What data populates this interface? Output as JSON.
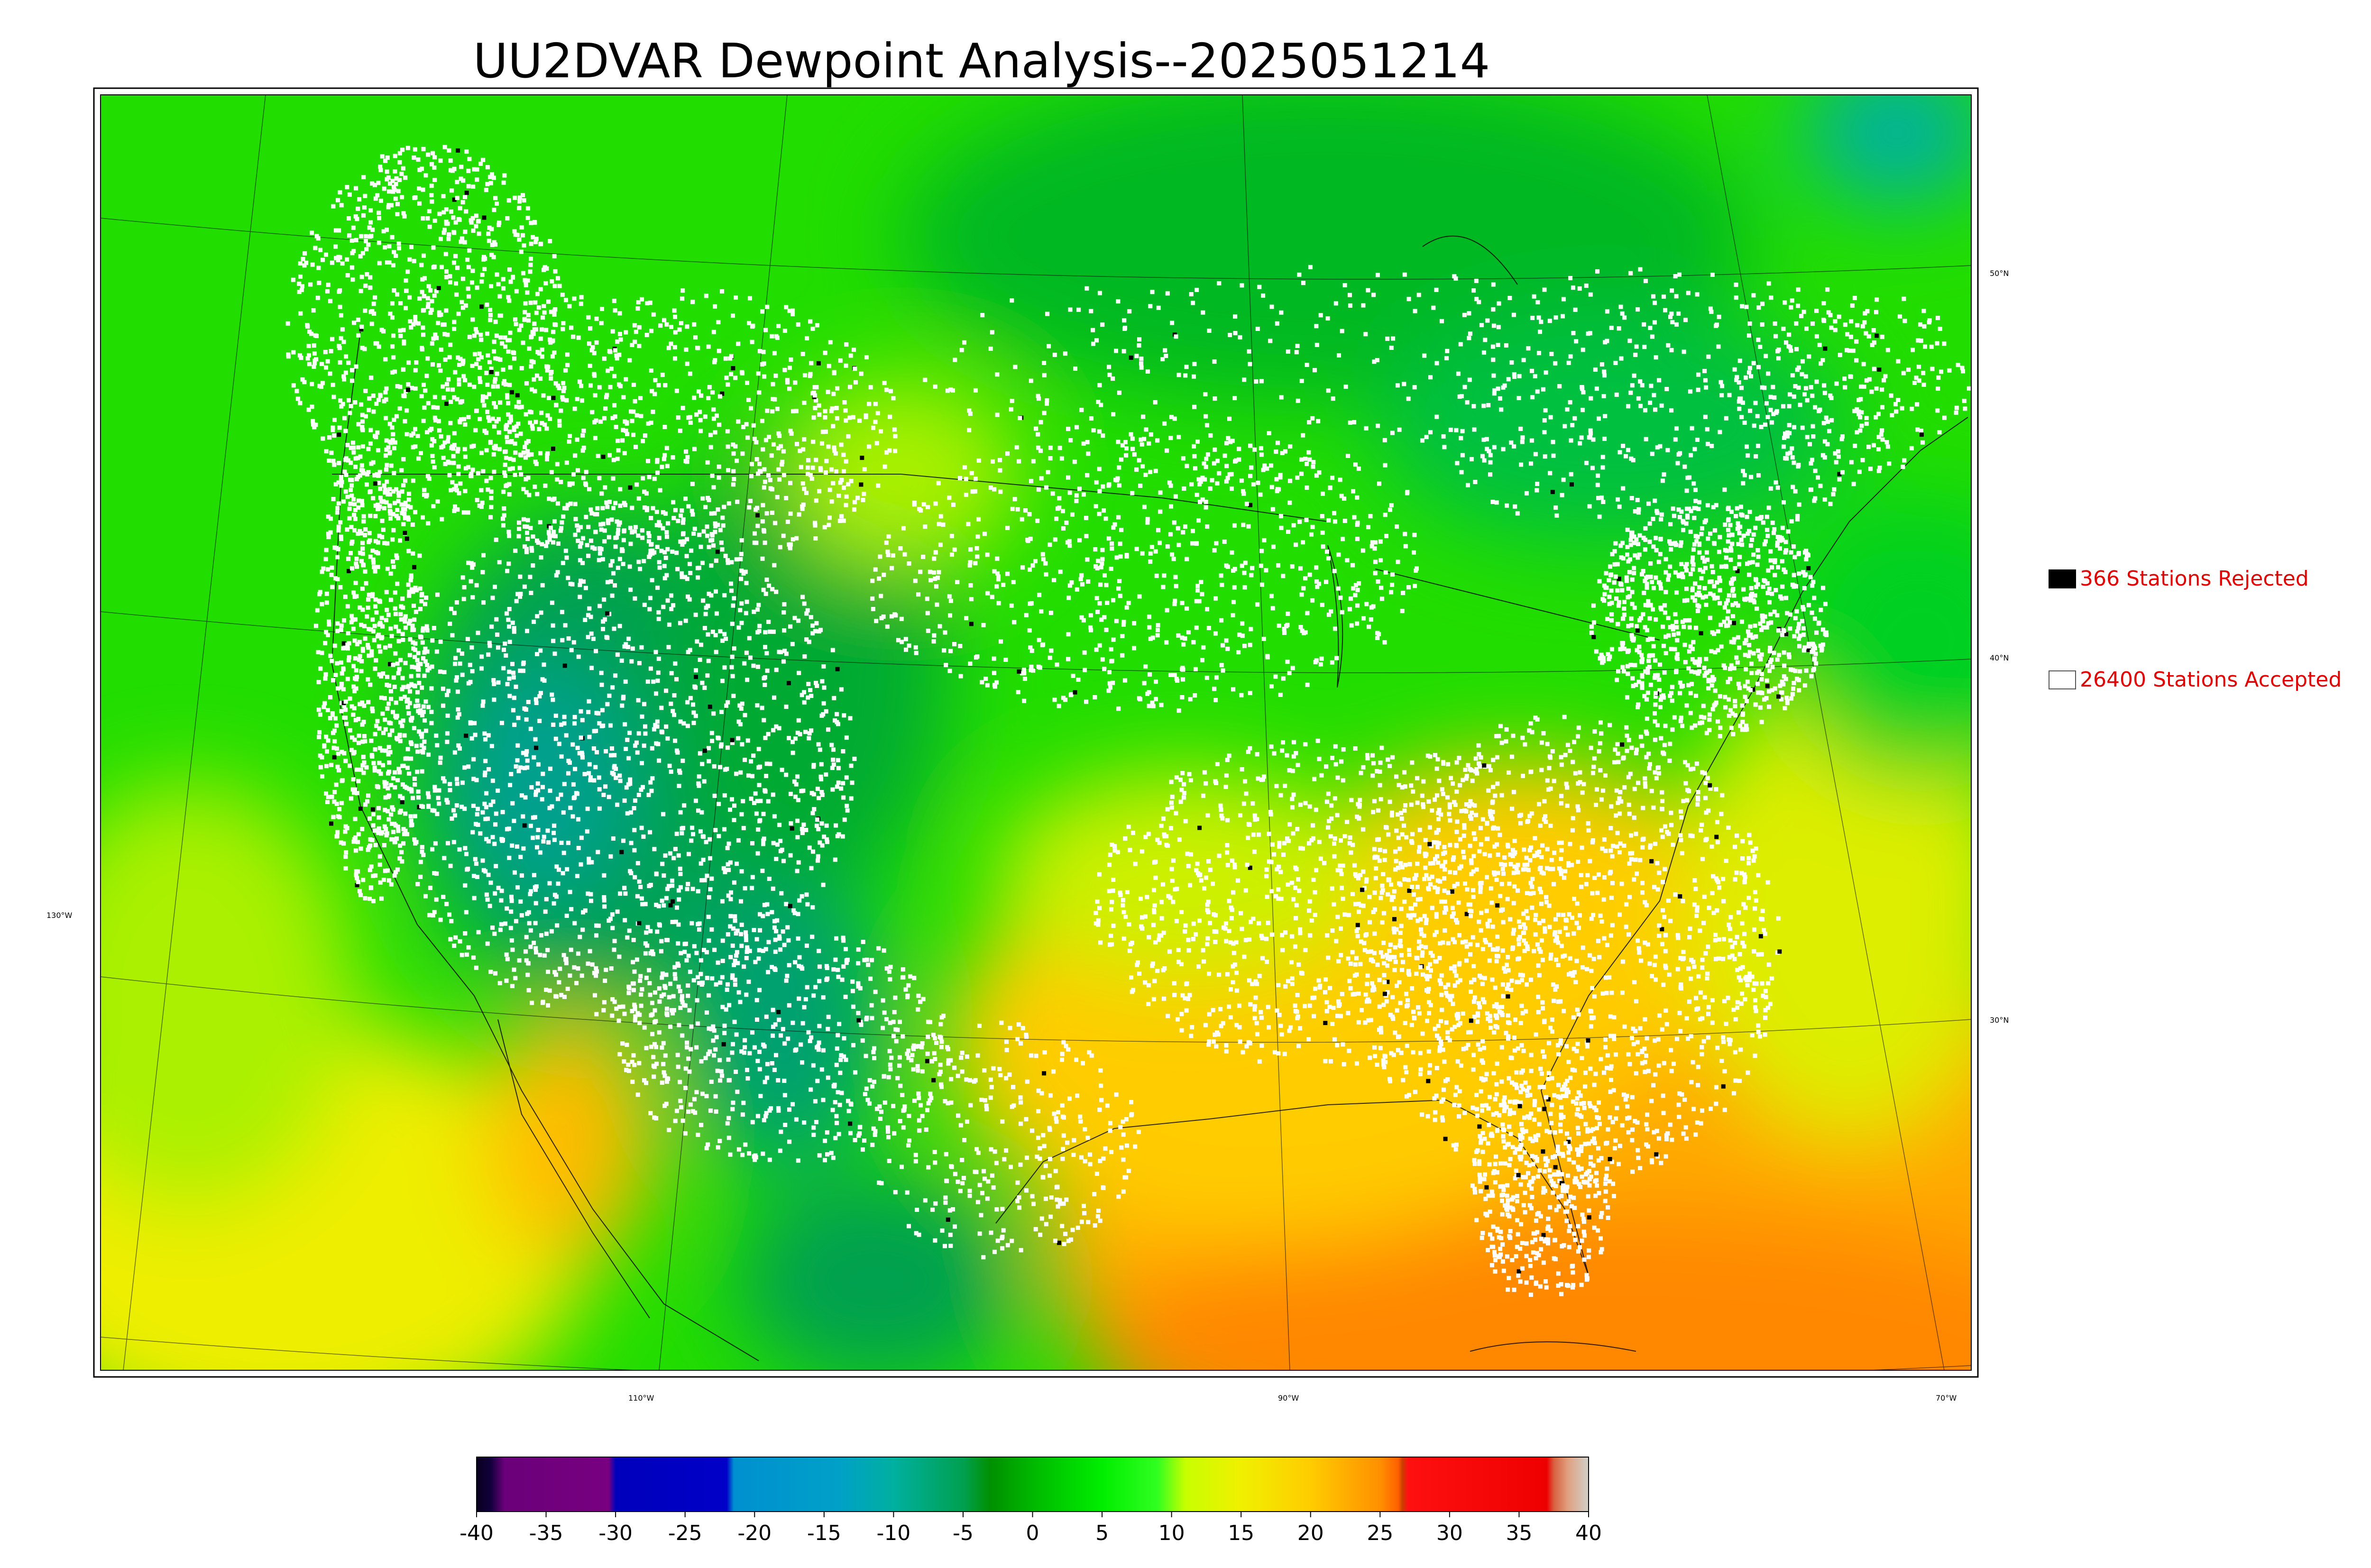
{
  "title": "UU2DVAR Dewpoint Analysis--2025051214",
  "legend": {
    "rejected": "366 Stations Rejected",
    "accepted": "26400 Stations Accepted"
  },
  "graticule_labels": {
    "lat": [
      "50°N",
      "40°N",
      "30°N"
    ],
    "lon": [
      "130°W",
      "110°W",
      "90°W",
      "70°W"
    ]
  },
  "colorbar": {
    "ticks": [
      "-40",
      "-35",
      "-30",
      "-25",
      "-20",
      "-15",
      "-10",
      "-5",
      "0",
      "5",
      "10",
      "15",
      "20",
      "25",
      "30",
      "35",
      "40"
    ],
    "stops": [
      {
        "v": -40,
        "c": "#0a0020"
      },
      {
        "v": -39,
        "c": "#10003a"
      },
      {
        "v": -38,
        "c": "#6a007a"
      },
      {
        "v": -30.5,
        "c": "#780080"
      },
      {
        "v": -30,
        "c": "#0000bb"
      },
      {
        "v": -22,
        "c": "#0000c8"
      },
      {
        "v": -21.5,
        "c": "#0090d0"
      },
      {
        "v": -14,
        "c": "#00a0c8"
      },
      {
        "v": -10,
        "c": "#00b0a0"
      },
      {
        "v": -5,
        "c": "#00a050"
      },
      {
        "v": -3,
        "c": "#009000"
      },
      {
        "v": 0,
        "c": "#00b800"
      },
      {
        "v": 5,
        "c": "#00ee00"
      },
      {
        "v": 9,
        "c": "#30ff20"
      },
      {
        "v": 11,
        "c": "#c8ff00"
      },
      {
        "v": 15,
        "c": "#f0f000"
      },
      {
        "v": 20,
        "c": "#ffcc00"
      },
      {
        "v": 25,
        "c": "#ff9000"
      },
      {
        "v": 26.3,
        "c": "#ff6000"
      },
      {
        "v": 26.6,
        "c": "#c84000"
      },
      {
        "v": 27,
        "c": "#ff1010"
      },
      {
        "v": 37,
        "c": "#ee0000"
      },
      {
        "v": 37.5,
        "c": "#d86040"
      },
      {
        "v": 38.5,
        "c": "#e0a080"
      },
      {
        "v": 40,
        "c": "#d0d0c8"
      }
    ]
  },
  "colors": {
    "frame": "#000000",
    "station_accepted": "#ffffff",
    "station_rejected": "#000000",
    "legend_text": "#e00000"
  },
  "map": {
    "field": "dewpoint",
    "units_implied": "degrees C",
    "region": "CONUS"
  }
}
